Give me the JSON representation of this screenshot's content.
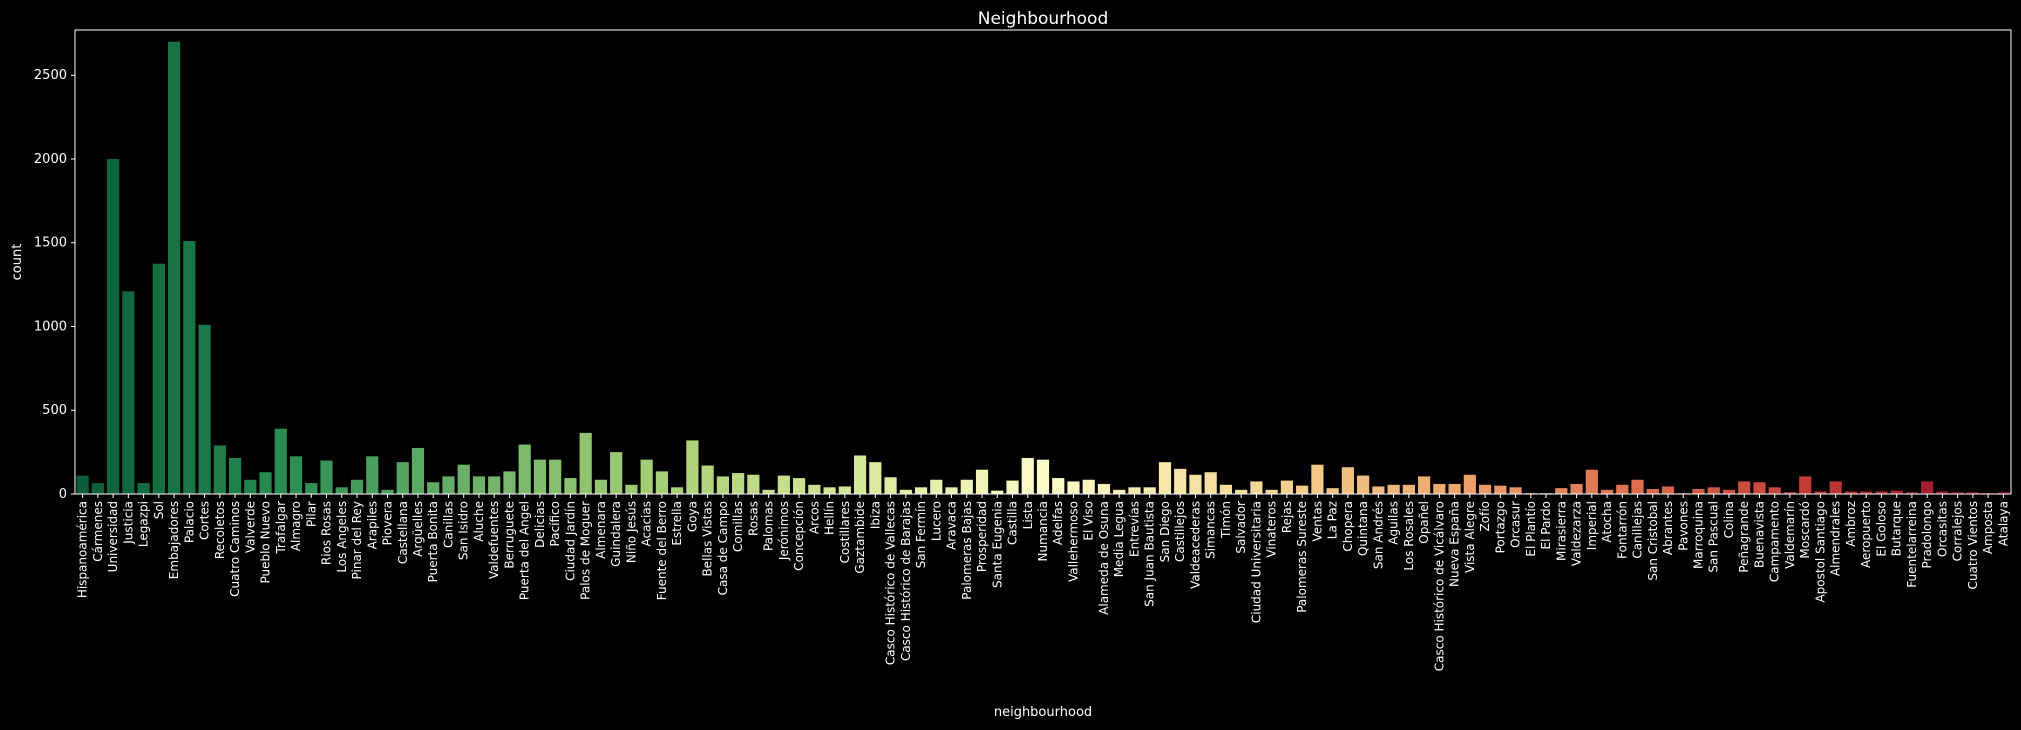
{
  "chart_data": {
    "type": "bar",
    "title": "Neighbourhood",
    "xlabel": "neighbourhood",
    "ylabel": "count",
    "ylim": [
      0,
      2770
    ],
    "yticks": [
      0,
      500,
      1000,
      1500,
      2000,
      2500
    ],
    "grid": false,
    "legend": "none",
    "palette": "RdYlGn_r",
    "categories": [
      "Hispanoamérica",
      "Cármenes",
      "Universidad",
      "Justicia",
      "Legazpi",
      "Sol",
      "Embajadores",
      "Palacio",
      "Cortes",
      "Recoletos",
      "Cuatro Caminos",
      "Valverde",
      "Pueblo Nuevo",
      "Trafalgar",
      "Almagro",
      "Pilar",
      "Rios Rosas",
      "Los Angeles",
      "Pinar del Rey",
      "Arapiles",
      "Piovera",
      "Castellana",
      "Argüelles",
      "Puerta Bonita",
      "Canillas",
      "San Isidro",
      "Aluche",
      "Valdefuentes",
      "Berruguete",
      "Puerta del Angel",
      "Delicias",
      "Pacífico",
      "Ciudad Jardín",
      "Palos de Moguer",
      "Almenara",
      "Guindalera",
      "Niño Jesús",
      "Acacias",
      "Fuente del Berro",
      "Estrella",
      "Goya",
      "Bellas Vistas",
      "Casa de Campo",
      "Comillas",
      "Rosas",
      "Palomas",
      "Jerónimos",
      "Concepción",
      "Arcos",
      "Hellín",
      "Costillares",
      "Gaztambide",
      "Ibiza",
      "Casco Histórico de Vallecas",
      "Casco Histórico de Barajas",
      "San Fermín",
      "Lucero",
      "Aravaca",
      "Palomeras Bajas",
      "Prosperidad",
      "Santa Eugenia",
      "Castilla",
      "Lista",
      "Numancia",
      "Adelfas",
      "Vallehermoso",
      "El Viso",
      "Alameda de Osuna",
      "Media Legua",
      "Entrevías",
      "San Juan Bautista",
      "San Diego",
      "Castillejos",
      "Valdeacederas",
      "Simancas",
      "Timón",
      "Salvador",
      "Ciudad Universitaria",
      "Vinateros",
      "Rejas",
      "Palomeras Sureste",
      "Ventas",
      "La Paz",
      "Chopera",
      "Quintana",
      "San Andrés",
      "Aguilas",
      "Los Rosales",
      "Opañel",
      "Casco Histórico de Vicálvaro",
      "Nueva España",
      "Vista Alegre",
      "Zofío",
      "Portazgo",
      "Orcasur",
      "El Plantío",
      "El Pardo",
      "Mirasierra",
      "Valdezarza",
      "Imperial",
      "Atocha",
      "Fontarrón",
      "Canillejas",
      "San Cristobal",
      "Abrantes",
      "Pavones",
      "Marroquina",
      "San Pascual",
      "Colina",
      "Peñagrande",
      "Buenavista",
      "Campamento",
      "Valdemarín",
      "Moscardó",
      "Apostol Santiago",
      "Almendrales",
      "Ambroz",
      "Aeropuerto",
      "El Goloso",
      "Butarque",
      "Fuentelarreina",
      "Pradolongo",
      "Orcasitas",
      "Corralejos",
      "Cuatro Vientos",
      "Amposta",
      "Atalaya"
    ],
    "values": [
      110,
      65,
      2000,
      1210,
      65,
      1375,
      2700,
      1510,
      1010,
      290,
      215,
      85,
      130,
      390,
      225,
      65,
      200,
      40,
      85,
      225,
      25,
      190,
      275,
      70,
      105,
      175,
      105,
      105,
      135,
      295,
      205,
      205,
      95,
      365,
      85,
      250,
      55,
      205,
      135,
      40,
      320,
      170,
      105,
      125,
      115,
      25,
      110,
      95,
      55,
      40,
      45,
      230,
      190,
      100,
      25,
      40,
      85,
      40,
      85,
      145,
      20,
      80,
      215,
      205,
      95,
      75,
      85,
      60,
      25,
      40,
      40,
      190,
      150,
      115,
      130,
      55,
      25,
      75,
      25,
      80,
      50,
      175,
      35,
      160,
      110,
      45,
      55,
      55,
      105,
      60,
      60,
      115,
      55,
      50,
      40,
      5,
      5,
      35,
      60,
      145,
      25,
      55,
      85,
      30,
      45,
      5,
      30,
      40,
      25,
      75,
      70,
      40,
      10,
      105,
      15,
      75,
      15,
      15,
      15,
      20,
      10,
      75,
      15,
      10,
      10,
      5,
      10
    ]
  }
}
